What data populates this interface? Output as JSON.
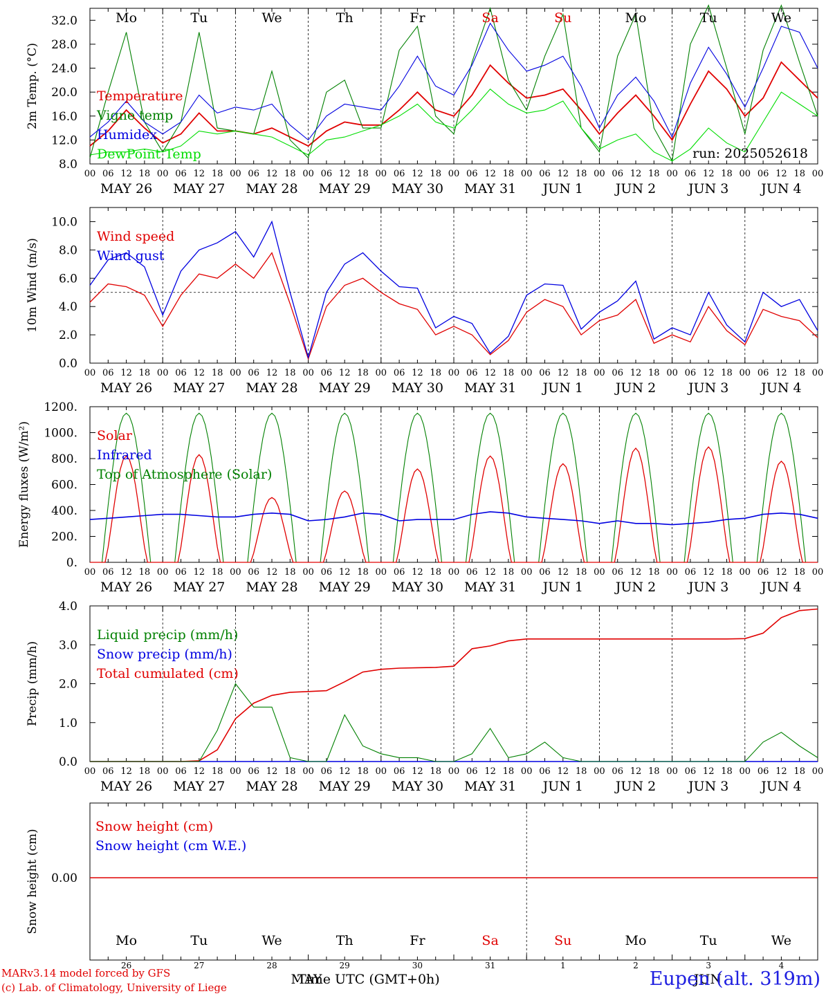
{
  "chart_data": [
    {
      "type": "line",
      "ylabel": "2m Temp. (°C)",
      "ylim": [
        8,
        34
      ],
      "yticks": [
        "32.0",
        "28.0",
        "24.0",
        "20.0",
        "16.0",
        "12.0",
        "8.0"
      ],
      "legend": [
        "Temperature",
        "Vigne temp",
        "Humidex",
        "DewPoint Temp"
      ],
      "legend_placement": "left",
      "annotation": "run: 2025052618",
      "day_labels": [
        "Mo",
        "Tu",
        "We",
        "Th",
        "Fr",
        "Sa",
        "Su",
        "Mo",
        "Tu",
        "We"
      ],
      "x": [
        0,
        6,
        12,
        18,
        24,
        30,
        36,
        42,
        48,
        54,
        60,
        66,
        72,
        78,
        84,
        90,
        96,
        102,
        108,
        114,
        120,
        126,
        132,
        138,
        144,
        150,
        156,
        162,
        168,
        174,
        180,
        186,
        192,
        198,
        204,
        210,
        216,
        222,
        228,
        234,
        240
      ],
      "series": [
        {
          "name": "Temperature",
          "color": "#e00000",
          "values": [
            11.0,
            13.5,
            17.0,
            14.0,
            11.5,
            13.0,
            16.5,
            13.5,
            13.5,
            13.0,
            14.0,
            12.5,
            11.0,
            13.5,
            15.0,
            14.5,
            14.5,
            17.0,
            20.0,
            17.0,
            16.0,
            19.5,
            24.5,
            21.5,
            19.0,
            19.5,
            20.5,
            17.0,
            13.0,
            16.5,
            19.5,
            16.0,
            12.0,
            18.0,
            23.5,
            20.5,
            16.0,
            19.0,
            25.0,
            22.0,
            19.0
          ]
        },
        {
          "name": "Vigne temp",
          "color": "#008000",
          "values": [
            9.0,
            20.0,
            30.0,
            15.0,
            10.0,
            15.0,
            30.0,
            14.0,
            13.5,
            13.0,
            23.5,
            12.0,
            9.0,
            20.0,
            22.0,
            14.0,
            14.0,
            27.0,
            31.0,
            16.0,
            13.0,
            25.0,
            34.0,
            22.0,
            17.0,
            26.0,
            33.0,
            14.0,
            10.0,
            26.0,
            33.0,
            14.0,
            8.5,
            28.0,
            34.5,
            24.0,
            13.0,
            27.0,
            34.5,
            25.0,
            16.0
          ]
        },
        {
          "name": "Humidex",
          "color": "#0000e0",
          "values": [
            12.5,
            15.0,
            18.5,
            15.0,
            13.0,
            15.0,
            19.5,
            16.5,
            17.5,
            17.0,
            18.0,
            14.5,
            12.0,
            16.0,
            18.0,
            17.5,
            17.0,
            21.0,
            26.0,
            21.0,
            19.5,
            24.5,
            31.5,
            27.0,
            23.5,
            24.5,
            26.0,
            21.0,
            14.0,
            19.5,
            22.5,
            18.5,
            12.5,
            21.5,
            27.5,
            23.0,
            17.5,
            24.0,
            31.0,
            30.0,
            24.0
          ]
        },
        {
          "name": "DewPoint Temp",
          "color": "#00dd00",
          "values": [
            9.5,
            10.0,
            10.0,
            10.5,
            10.0,
            11.0,
            13.5,
            13.0,
            13.5,
            13.0,
            12.5,
            11.0,
            9.5,
            12.0,
            12.5,
            13.5,
            14.5,
            16.0,
            18.0,
            15.0,
            14.0,
            17.0,
            20.5,
            18.0,
            16.5,
            17.0,
            18.5,
            14.0,
            10.5,
            12.0,
            13.0,
            10.0,
            8.5,
            10.5,
            14.0,
            11.5,
            10.0,
            15.0,
            20.0,
            18.0,
            16.0
          ]
        }
      ]
    },
    {
      "type": "line",
      "ylabel": "10m Wind (m/s)",
      "ylim": [
        0,
        11
      ],
      "yticks": [
        "10.0",
        "8.0",
        "6.0",
        "4.0",
        "2.0",
        "0.0"
      ],
      "reference_line": 5.0,
      "legend": [
        "Wind speed",
        "Wind gust"
      ],
      "x": [
        0,
        6,
        12,
        18,
        24,
        30,
        36,
        42,
        48,
        54,
        60,
        66,
        72,
        78,
        84,
        90,
        96,
        102,
        108,
        114,
        120,
        126,
        132,
        138,
        144,
        150,
        156,
        162,
        168,
        174,
        180,
        186,
        192,
        198,
        204,
        210,
        216,
        222,
        228,
        234,
        240
      ],
      "series": [
        {
          "name": "Wind speed",
          "color": "#e00000",
          "values": [
            4.3,
            5.6,
            5.4,
            4.8,
            2.6,
            4.8,
            6.3,
            6.0,
            7.0,
            6.0,
            7.8,
            4.2,
            0.3,
            4.0,
            5.5,
            6.0,
            5.0,
            4.2,
            3.8,
            2.0,
            2.6,
            2.0,
            0.6,
            1.6,
            3.6,
            4.5,
            4.0,
            2.0,
            3.0,
            3.4,
            4.5,
            1.4,
            2.0,
            1.5,
            4.0,
            2.3,
            1.3,
            3.8,
            3.3,
            3.0,
            1.8
          ]
        },
        {
          "name": "Wind gust",
          "color": "#0000e0",
          "values": [
            5.5,
            7.3,
            7.8,
            6.8,
            3.4,
            6.5,
            8.0,
            8.5,
            9.3,
            7.5,
            10.0,
            5.0,
            0.4,
            5.0,
            7.0,
            7.8,
            6.5,
            5.4,
            5.3,
            2.5,
            3.3,
            2.8,
            0.7,
            1.9,
            4.8,
            5.6,
            5.5,
            2.4,
            3.6,
            4.4,
            5.8,
            1.7,
            2.5,
            2.0,
            5.0,
            2.7,
            1.5,
            5.0,
            4.0,
            4.5,
            2.3
          ]
        }
      ]
    },
    {
      "type": "line",
      "ylabel": "Energy fluxes (W/m²)",
      "ylim": [
        0,
        1200
      ],
      "yticks": [
        "1200.",
        "1000.",
        "800.",
        "600.",
        "400.",
        "200.",
        "0."
      ],
      "legend": [
        "Solar",
        "Infrared",
        "Top of Atmosphere (Solar)"
      ],
      "days_solar_peak": [
        820,
        830,
        500,
        550,
        720,
        820,
        760,
        880,
        890,
        780
      ],
      "toa_peak": 1150,
      "infrared": [
        330,
        340,
        350,
        360,
        370,
        370,
        360,
        350,
        350,
        370,
        380,
        370,
        320,
        330,
        350,
        380,
        370,
        320,
        330,
        330,
        330,
        370,
        390,
        380,
        350,
        340,
        330,
        320,
        300,
        320,
        300,
        300,
        290,
        300,
        310,
        330,
        340,
        370,
        380,
        370,
        340
      ]
    },
    {
      "type": "line",
      "ylabel": "Precip (mm/h)",
      "ylim": [
        0,
        4
      ],
      "yticks": [
        "4.0",
        "3.0",
        "2.0",
        "1.0",
        "0.0"
      ],
      "legend": [
        "Liquid precip (mm/h)",
        "Snow precip (mm/h)",
        "Total cumulated (cm)"
      ],
      "x": [
        0,
        6,
        12,
        18,
        24,
        30,
        36,
        42,
        48,
        54,
        60,
        66,
        72,
        78,
        84,
        90,
        96,
        102,
        108,
        114,
        120,
        126,
        132,
        138,
        144,
        150,
        156,
        162,
        168,
        174,
        180,
        186,
        192,
        198,
        204,
        210,
        216,
        222,
        228,
        234,
        240
      ],
      "series": [
        {
          "name": "Total cumulated (cm)",
          "color": "#e00000",
          "values": [
            0,
            0,
            0,
            0,
            0,
            0,
            0.02,
            0.3,
            1.1,
            1.5,
            1.7,
            1.78,
            1.8,
            1.82,
            2.05,
            2.3,
            2.37,
            2.4,
            2.41,
            2.42,
            2.45,
            2.9,
            2.97,
            3.1,
            3.15,
            3.15,
            3.15,
            3.15,
            3.15,
            3.15,
            3.15,
            3.15,
            3.15,
            3.15,
            3.15,
            3.15,
            3.16,
            3.3,
            3.7,
            3.88,
            3.92
          ]
        },
        {
          "name": "Liquid precip (mm/h)",
          "color": "#008000",
          "values": [
            0,
            0,
            0,
            0,
            0,
            0,
            0,
            0.8,
            2.0,
            1.4,
            1.4,
            0.1,
            0,
            0,
            1.2,
            0.4,
            0.2,
            0.1,
            0.1,
            0,
            0,
            0.2,
            0.85,
            0.1,
            0.2,
            0.5,
            0.1,
            0,
            0,
            0,
            0,
            0,
            0,
            0,
            0,
            0,
            0,
            0.5,
            0.75,
            0.4,
            0.1
          ]
        }
      ]
    },
    {
      "type": "line",
      "ylabel": "Snow height (cm)",
      "yticks": [
        "0.00"
      ],
      "legend": [
        "Snow height (cm)",
        "Snow height (cm W.E.)"
      ],
      "bottom_day_labels": [
        "Mo",
        "Tu",
        "We",
        "Th",
        "Fr",
        "Sa",
        "Su",
        "Mo",
        "Tu",
        "We"
      ],
      "bottom_date_numbers": [
        "26",
        "27",
        "28",
        "29",
        "30",
        "31",
        "1",
        "2",
        "3",
        "4"
      ],
      "month_labels": [
        "MAY",
        "JUN"
      ]
    }
  ],
  "x_ticks": [
    "00",
    "06",
    "12",
    "18"
  ],
  "date_labels": [
    "MAY 26",
    "MAY 27",
    "MAY 28",
    "MAY 29",
    "MAY 30",
    "MAY 31",
    "JUN  1",
    "JUN  2",
    "JUN  3",
    "JUN  4"
  ],
  "weekend_color": "#e00000",
  "footer": {
    "left_line1": "MARv3.14 model forced by GFS",
    "left_line2": "(c) Lab. of Climatology, University of Liege",
    "center": "Time UTC (GMT+0h)",
    "right": "Eupen (alt. 319m)"
  }
}
